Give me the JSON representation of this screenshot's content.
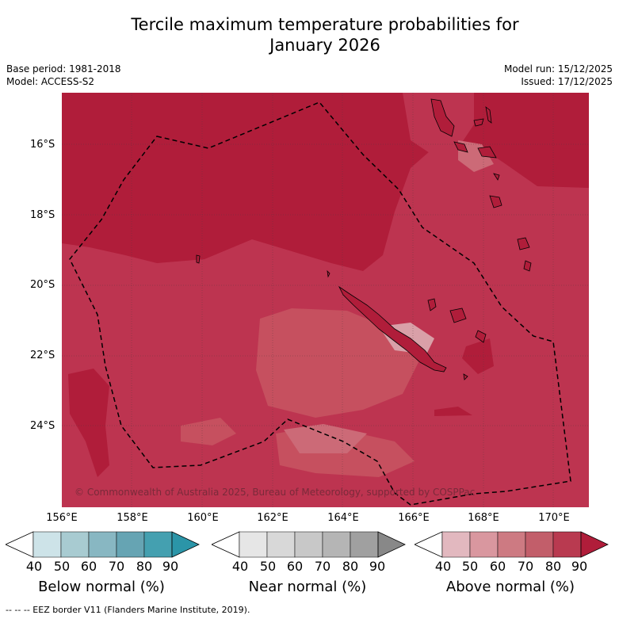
{
  "title_line1": "Tercile maximum temperature probabilities for",
  "title_line2": "January 2026",
  "base_period": "Base period: 1981-2018",
  "model": "Model: ACCESS-S2",
  "model_run": "Model run: 15/12/2025",
  "issued": "Issued: 17/12/2025",
  "copyright": "© Commonwealth of Australia 2025, Bureau of Meteorology, supported by COSPPac",
  "lat_labels": [
    "16°S",
    "18°S",
    "20°S",
    "22°S",
    "24°S"
  ],
  "lon_labels": [
    "156°E",
    "158°E",
    "160°E",
    "162°E",
    "164°E",
    "166°E",
    "168°E",
    "170°E"
  ],
  "colorbars": [
    {
      "title": "Below normal (%)",
      "ticks": [
        "40",
        "50",
        "60",
        "70",
        "80",
        "90"
      ],
      "colors": [
        "#ffffff",
        "#cde3e8",
        "#a8cbd1",
        "#88b7c2",
        "#66a4b3",
        "#44a0b0",
        "#2b95a8"
      ]
    },
    {
      "title": "Near normal (%)",
      "ticks": [
        "40",
        "50",
        "60",
        "70",
        "80",
        "90"
      ],
      "colors": [
        "#ffffff",
        "#e6e6e6",
        "#d8d8d8",
        "#c8c8c8",
        "#b5b5b5",
        "#a0a0a0",
        "#888888"
      ]
    },
    {
      "title": "Above normal (%)",
      "ticks": [
        "40",
        "50",
        "60",
        "70",
        "80",
        "90"
      ],
      "colors": [
        "#ffffff",
        "#e2b8bf",
        "#d9979f",
        "#cd7a82",
        "#c25e6a",
        "#b93a50",
        "#b01d3a"
      ]
    }
  ],
  "footer": "--  --  -- EEZ border V11 (Flanders Marine Institute, 2019).",
  "map_colors": {
    "base": "#bd3450",
    "dark": "#b01d3a",
    "light": "#c6505f",
    "lighter": "#d9a0a8"
  }
}
